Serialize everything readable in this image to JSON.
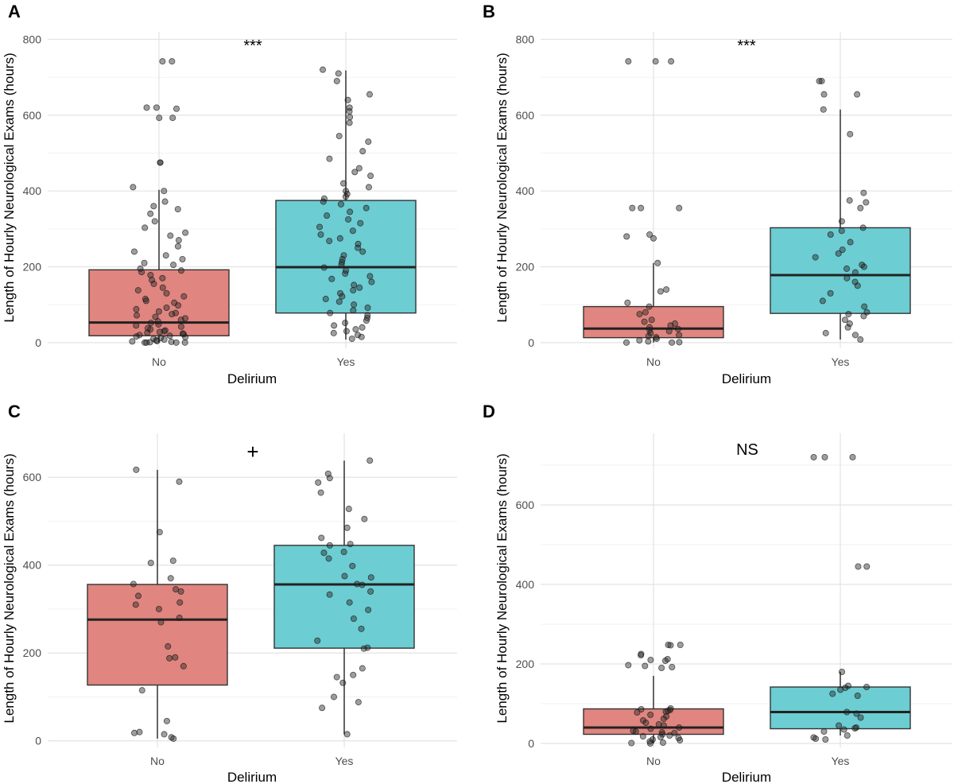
{
  "chart_data": [
    {
      "type": "box",
      "panel": "A",
      "annotation": "***",
      "xlabel": "Delirium",
      "ylabel": "Length of Hourly Neurological Exams (hours)",
      "categories": [
        "No",
        "Yes"
      ],
      "ylim": [
        -15,
        820
      ],
      "yticks": [
        0,
        200,
        400,
        600,
        800
      ],
      "colors": {
        "No": "#e0857f",
        "Yes": "#6ccdd2"
      },
      "boxes": [
        {
          "category": "No",
          "lower_whisker": 0,
          "q1": 18,
          "median": 53,
          "q3": 192,
          "upper_whisker": 403
        },
        {
          "category": "Yes",
          "lower_whisker": 8,
          "q1": 78,
          "median": 199,
          "q3": 375,
          "upper_whisker": 718
        }
      ],
      "points": [
        {
          "category": "No",
          "values": [
            742,
            742,
            620,
            620,
            617,
            593,
            593,
            475,
            475,
            410,
            400,
            372,
            360,
            352,
            340,
            320,
            303,
            290,
            282,
            270,
            254,
            240,
            230,
            220,
            210,
            205,
            195,
            190,
            186,
            178,
            170,
            165,
            155,
            145,
            138,
            130,
            122,
            115,
            110,
            105,
            98,
            92,
            88,
            82,
            78,
            75,
            72,
            68,
            64,
            60,
            56,
            52,
            48,
            45,
            42,
            38,
            35,
            32,
            30,
            28,
            26,
            24,
            22,
            20,
            18,
            16,
            14,
            12,
            10,
            8,
            6,
            4,
            3,
            2,
            1,
            0,
            0,
            0,
            0
          ]
        },
        {
          "category": "Yes",
          "values": [
            720,
            710,
            690,
            655,
            640,
            620,
            610,
            595,
            580,
            545,
            530,
            505,
            485,
            460,
            450,
            440,
            420,
            410,
            400,
            392,
            385,
            380,
            372,
            365,
            355,
            345,
            335,
            325,
            315,
            305,
            295,
            285,
            275,
            268,
            260,
            250,
            240,
            230,
            220,
            212,
            205,
            198,
            190,
            182,
            175,
            168,
            160,
            152,
            145,
            138,
            130,
            122,
            115,
            108,
            100,
            92,
            85,
            78,
            72,
            65,
            58,
            52,
            45,
            40,
            35,
            30,
            25,
            20,
            15,
            10
          ]
        }
      ]
    },
    {
      "type": "box",
      "panel": "B",
      "annotation": "***",
      "xlabel": "Delirium",
      "ylabel": "Length of Hourly Neurological Exams (hours)",
      "categories": [
        "No",
        "Yes"
      ],
      "ylim": [
        -15,
        820
      ],
      "yticks": [
        0,
        200,
        400,
        600,
        800
      ],
      "colors": {
        "No": "#e0857f",
        "Yes": "#6ccdd2"
      },
      "boxes": [
        {
          "category": "No",
          "lower_whisker": 0,
          "q1": 13,
          "median": 37,
          "q3": 95,
          "upper_whisker": 210
        },
        {
          "category": "Yes",
          "lower_whisker": 8,
          "q1": 77,
          "median": 178,
          "q3": 303,
          "upper_whisker": 615
        }
      ],
      "points": [
        {
          "category": "No",
          "values": [
            742,
            742,
            742,
            355,
            355,
            355,
            285,
            280,
            275,
            210,
            140,
            135,
            105,
            95,
            80,
            75,
            60,
            55,
            50,
            45,
            40,
            36,
            33,
            30,
            25,
            20,
            17,
            14,
            10,
            6,
            3,
            1,
            0,
            0
          ]
        },
        {
          "category": "Yes",
          "values": [
            690,
            690,
            655,
            655,
            615,
            550,
            395,
            375,
            370,
            355,
            320,
            303,
            295,
            285,
            265,
            245,
            235,
            225,
            205,
            200,
            195,
            185,
            170,
            160,
            150,
            130,
            110,
            95,
            80,
            75,
            70,
            60,
            50,
            40,
            25,
            20,
            8
          ]
        }
      ]
    },
    {
      "type": "box",
      "panel": "C",
      "annotation": "+",
      "xlabel": "Delirium",
      "ylabel": "Length of Hourly Neurological Exams (hours)",
      "categories": [
        "No",
        "Yes"
      ],
      "ylim": [
        -15,
        700
      ],
      "yticks": [
        0,
        200,
        400,
        600
      ],
      "colors": {
        "No": "#e0857f",
        "Yes": "#6ccdd2"
      },
      "boxes": [
        {
          "category": "No",
          "lower_whisker": 5,
          "q1": 127,
          "median": 276,
          "q3": 356,
          "upper_whisker": 617
        },
        {
          "category": "Yes",
          "lower_whisker": 15,
          "q1": 211,
          "median": 356,
          "q3": 445,
          "upper_whisker": 638
        }
      ],
      "points": [
        {
          "category": "No",
          "values": [
            617,
            590,
            475,
            410,
            405,
            370,
            357,
            345,
            340,
            330,
            315,
            310,
            300,
            280,
            270,
            215,
            190,
            188,
            170,
            115,
            45,
            20,
            18,
            15,
            8,
            5
          ]
        },
        {
          "category": "Yes",
          "values": [
            638,
            608,
            598,
            588,
            565,
            528,
            505,
            485,
            462,
            448,
            445,
            430,
            428,
            415,
            398,
            375,
            372,
            357,
            355,
            340,
            333,
            315,
            298,
            278,
            255,
            228,
            212,
            210,
            165,
            150,
            145,
            132,
            100,
            88,
            75,
            15
          ]
        }
      ]
    },
    {
      "type": "box",
      "panel": "D",
      "annotation": "NS",
      "xlabel": "Delirium",
      "ylabel": "Length of Hourly Neurological Exams (hours)",
      "categories": [
        "No",
        "Yes"
      ],
      "ylim": [
        -10,
        780
      ],
      "yticks": [
        0,
        200,
        400,
        600
      ],
      "colors": {
        "No": "#e0857f",
        "Yes": "#6ccdd2"
      },
      "boxes": [
        {
          "category": "No",
          "lower_whisker": 0,
          "q1": 23,
          "median": 40,
          "q3": 87,
          "upper_whisker": 170
        },
        {
          "category": "Yes",
          "lower_whisker": 20,
          "q1": 37,
          "median": 79,
          "q3": 142,
          "upper_whisker": 180
        }
      ],
      "points": [
        {
          "category": "No",
          "values": [
            248,
            248,
            247,
            225,
            222,
            212,
            210,
            208,
            197,
            195,
            192,
            190,
            88,
            86,
            84,
            82,
            80,
            78,
            72,
            68,
            62,
            58,
            52,
            48,
            45,
            40,
            37,
            32,
            30,
            28,
            26,
            23,
            20,
            18,
            16,
            14,
            10,
            8,
            5,
            2,
            1,
            0
          ]
        },
        {
          "category": "Yes",
          "values": [
            720,
            720,
            720,
            445,
            445,
            180,
            145,
            142,
            140,
            135,
            125,
            120,
            79,
            75,
            65,
            45,
            40,
            38,
            35,
            30,
            20,
            15,
            12,
            10
          ]
        }
      ]
    }
  ]
}
